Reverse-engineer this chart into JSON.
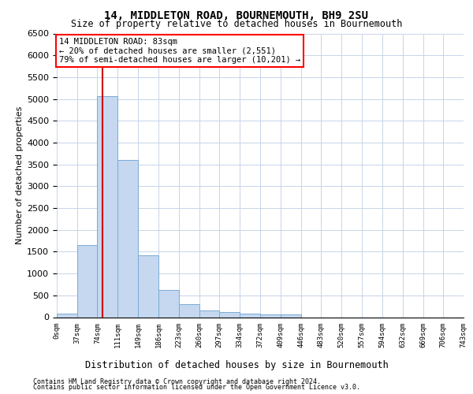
{
  "title": "14, MIDDLETON ROAD, BOURNEMOUTH, BH9 2SU",
  "subtitle": "Size of property relative to detached houses in Bournemouth",
  "xlabel": "Distribution of detached houses by size in Bournemouth",
  "ylabel": "Number of detached properties",
  "bar_color": "#c5d8f0",
  "bar_edge_color": "#7aaad4",
  "background_color": "#ffffff",
  "grid_color": "#c8d4e8",
  "annotation_text": "14 MIDDLETON ROAD: 83sqm\n← 20% of detached houses are smaller (2,551)\n79% of semi-detached houses are larger (10,201) →",
  "vline_x": 83,
  "vline_color": "#cc0000",
  "footer1": "Contains HM Land Registry data © Crown copyright and database right 2024.",
  "footer2": "Contains public sector information licensed under the Open Government Licence v3.0.",
  "bin_edges": [
    0,
    37,
    74,
    111,
    149,
    186,
    223,
    260,
    297,
    334,
    372,
    409,
    446,
    483,
    520,
    557,
    594,
    632,
    669,
    706,
    743
  ],
  "bar_heights": [
    75,
    1650,
    5070,
    3600,
    1420,
    620,
    300,
    155,
    120,
    80,
    60,
    55,
    0,
    0,
    0,
    0,
    0,
    0,
    0,
    0
  ],
  "ylim": [
    0,
    6500
  ],
  "yticks": [
    0,
    500,
    1000,
    1500,
    2000,
    2500,
    3000,
    3500,
    4000,
    4500,
    5000,
    5500,
    6000,
    6500
  ],
  "tick_labels": [
    "0sqm",
    "37sqm",
    "74sqm",
    "111sqm",
    "149sqm",
    "186sqm",
    "223sqm",
    "260sqm",
    "297sqm",
    "334sqm",
    "372sqm",
    "409sqm",
    "446sqm",
    "483sqm",
    "520sqm",
    "557sqm",
    "594sqm",
    "632sqm",
    "669sqm",
    "706sqm",
    "743sqm"
  ],
  "title_fontsize": 10,
  "subtitle_fontsize": 8.5,
  "ylabel_fontsize": 8,
  "xlabel_fontsize": 8.5,
  "ytick_fontsize": 8,
  "xtick_fontsize": 6.5,
  "annotation_fontsize": 7.5,
  "footer_fontsize": 6
}
